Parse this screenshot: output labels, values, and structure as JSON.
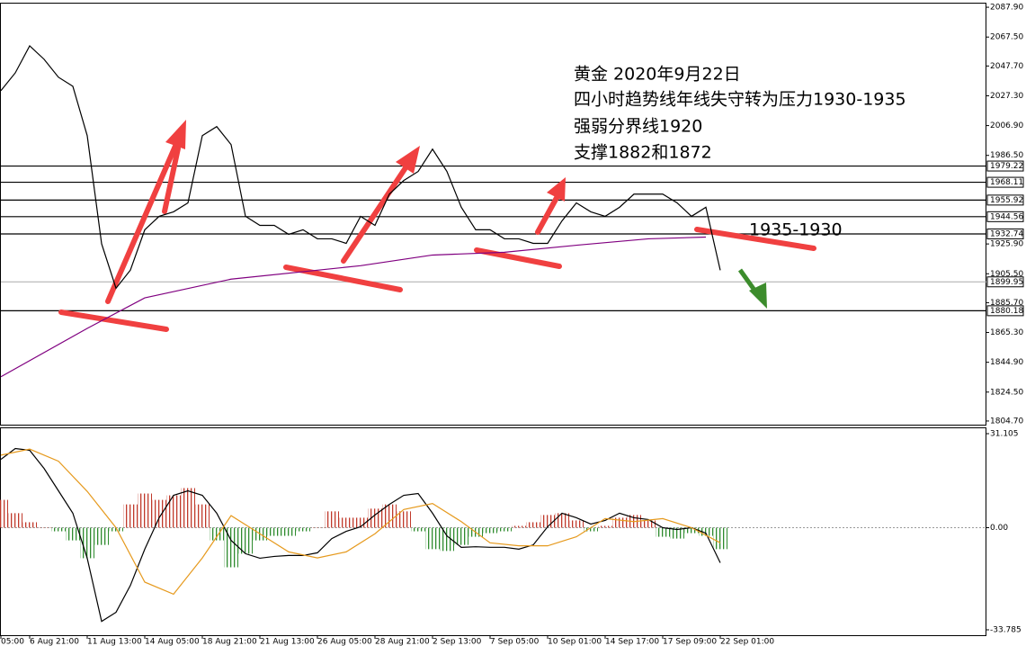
{
  "chart_data": [
    {
      "type": "line",
      "annotations": [
        "黄金 2020年9月22日",
        "四小时趋势线年线失守转为压力1930-1935",
        "强弱分界线1920",
        "支撑1882和1872",
        "1935-1930"
      ],
      "xlim": [
        0,
        274
      ],
      "ylim": [
        1802.2,
        2090.4
      ],
      "yticks": [
        {
          "value": 2087.9,
          "label": "2087.90"
        },
        {
          "value": 2067.5,
          "label": "2067.50"
        },
        {
          "value": 2047.7,
          "label": "2047.70"
        },
        {
          "value": 2027.3,
          "label": "2027.30"
        },
        {
          "value": 2006.9,
          "label": "2006.90"
        },
        {
          "value": 1986.5,
          "label": "1986.50"
        },
        {
          "value": 1925.9,
          "label": "1925.90"
        },
        {
          "value": 1905.5,
          "label": "1905.50"
        },
        {
          "value": 1885.7,
          "label": "1885.70"
        },
        {
          "value": 1865.3,
          "label": "1865.30"
        },
        {
          "value": 1844.9,
          "label": "1844.90"
        },
        {
          "value": 1824.5,
          "label": "1824.50"
        },
        {
          "value": 1804.7,
          "label": "1804.70"
        }
      ],
      "levels": [
        {
          "value": 1979.22,
          "label": "1979.22"
        },
        {
          "value": 1968.11,
          "label": "1968.11"
        },
        {
          "value": 1955.92,
          "label": "1955.92"
        },
        {
          "value": 1944.56,
          "label": "1944.56"
        },
        {
          "value": 1932.74,
          "label": "1932.74"
        },
        {
          "value": 1880.18,
          "label": "1880.18"
        }
      ],
      "current": {
        "value": 1899.95,
        "label": "1899.95"
      },
      "series": [
        {
          "color": "#000000",
          "x": [
            0,
            4,
            8,
            12,
            16,
            20,
            24,
            28,
            32,
            36,
            40,
            44,
            48,
            52,
            56,
            60,
            64,
            68,
            72,
            76,
            80,
            84,
            88,
            92,
            96,
            100,
            104,
            108,
            112,
            116,
            120,
            124,
            128,
            132,
            136,
            140,
            144,
            148,
            152,
            156,
            160,
            164,
            168,
            172,
            176,
            180,
            184,
            188,
            192,
            196,
            200
          ],
          "values": [
            2030.8,
            2043,
            2061.5,
            2052.3,
            2040,
            2033.8,
            2000,
            1926,
            1895.6,
            1908,
            1935.6,
            1944.8,
            1947.9,
            1954,
            2000,
            2006.2,
            1993.9,
            1944.8,
            1938.6,
            1938.6,
            1932.5,
            1935.6,
            1929.4,
            1929.4,
            1926.3,
            1944.8,
            1938.6,
            1960,
            1969.3,
            1975.5,
            1990.8,
            1975.5,
            1951,
            1935.6,
            1935.6,
            1929.4,
            1929.4,
            1926.3,
            1926.3,
            1941.7,
            1954,
            1947.9,
            1944.8,
            1951,
            1960,
            1960,
            1960,
            1954,
            1944.8,
            1951,
            1907.9
          ]
        },
        {
          "color": "#800080",
          "x": [
            0,
            24,
            40,
            64,
            100,
            120,
            140,
            160,
            180,
            196
          ],
          "values": [
            1835,
            1868.1,
            1889,
            1901.8,
            1911,
            1918.3,
            1920.2,
            1925,
            1929.4,
            1930.6
          ]
        }
      ]
    },
    {
      "type": "bar",
      "xlim": [
        0,
        274
      ],
      "ylim": [
        -35.57,
        32.89
      ],
      "yticks": [
        {
          "value": 31.105,
          "label": "31.105"
        },
        {
          "value": 0,
          "label": "0.00"
        },
        {
          "value": -33.785,
          "label": "-33.785"
        }
      ],
      "xticks": [
        {
          "value": 0,
          "label": "05:00"
        },
        {
          "value": 8,
          "label": "6 Aug 21:00"
        },
        {
          "value": 24,
          "label": "11 Aug 13:00"
        },
        {
          "value": 40,
          "label": "14 Aug 05:00"
        },
        {
          "value": 56,
          "label": "18 Aug 21:00"
        },
        {
          "value": 72,
          "label": "21 Aug 13:00"
        },
        {
          "value": 88,
          "label": "26 Aug 05:00"
        },
        {
          "value": 104,
          "label": "28 Aug 21:00"
        },
        {
          "value": 120,
          "label": "2 Sep 13:00"
        },
        {
          "value": 136,
          "label": "7 Sep 05:00"
        },
        {
          "value": 152,
          "label": "10 Sep 01:00"
        },
        {
          "value": 168,
          "label": "14 Sep 17:00"
        },
        {
          "value": 184,
          "label": "17 Sep 09:00"
        },
        {
          "value": 200,
          "label": "22 Sep 01:00"
        }
      ],
      "x": [
        0,
        4,
        8,
        12,
        16,
        20,
        24,
        28,
        32,
        36,
        40,
        44,
        48,
        52,
        56,
        60,
        64,
        68,
        72,
        76,
        80,
        84,
        88,
        92,
        96,
        100,
        104,
        108,
        112,
        116,
        120,
        124,
        128,
        132,
        136,
        140,
        144,
        148,
        152,
        156,
        160,
        164,
        168,
        172,
        176,
        180,
        184,
        188,
        192,
        196,
        200
      ],
      "values": [
        9.2,
        4.8,
        1.8,
        0,
        -1.2,
        -4.2,
        -10.1,
        -5.7,
        -1.2,
        7.7,
        11.3,
        9.2,
        10.7,
        13.1,
        7.7,
        -4.2,
        -13.1,
        -8.6,
        -4.2,
        -2.7,
        -2.7,
        -1.2,
        0,
        5.4,
        3.3,
        3.3,
        6.3,
        7.7,
        5.4,
        -1.2,
        -7.1,
        -7.7,
        -5.7,
        -3,
        -1.8,
        -1.2,
        0.6,
        1.8,
        4.2,
        4.8,
        2.4,
        -1.2,
        0.6,
        3.3,
        4.2,
        2.4,
        -3,
        -3.6,
        -1.8,
        -2.7,
        -7.1
      ],
      "colors": {
        "positive": "#c0392b",
        "negative": "#2e8b2e"
      },
      "series": [
        {
          "color": "#000000",
          "x": [
            0,
            4,
            8,
            12,
            16,
            20,
            24,
            28,
            32,
            36,
            40,
            44,
            48,
            52,
            56,
            60,
            64,
            68,
            72,
            76,
            80,
            84,
            88,
            92,
            96,
            100,
            104,
            108,
            112,
            116,
            120,
            124,
            128,
            132,
            136,
            140,
            144,
            148,
            152,
            156,
            160,
            164,
            168,
            172,
            176,
            180,
            184,
            188,
            192,
            196,
            200
          ],
          "values": [
            22.6,
            26.2,
            25.6,
            19.6,
            12.2,
            4.8,
            -10.1,
            -31,
            -28,
            -19.1,
            -7.1,
            3.3,
            10.7,
            12.2,
            10.7,
            4.8,
            -4.2,
            -8.6,
            -10.1,
            -9.5,
            -9.2,
            -9.2,
            -8.3,
            -3.6,
            -1.2,
            0.3,
            4.2,
            7.7,
            10.7,
            11.3,
            4.8,
            -2.7,
            -6.5,
            -6.3,
            -6.5,
            -6.5,
            -7.1,
            -5.7,
            0.3,
            4.8,
            3.3,
            1.2,
            2.4,
            4.8,
            3.3,
            2.7,
            0,
            -0.6,
            0,
            -1.8,
            -11.6
          ]
        },
        {
          "color": "#e69a1e",
          "x": [
            0,
            8,
            16,
            24,
            32,
            40,
            48,
            56,
            64,
            72,
            80,
            88,
            96,
            104,
            112,
            120,
            128,
            136,
            144,
            152,
            160,
            168,
            176,
            184,
            192,
            200
          ],
          "values": [
            24,
            26,
            22,
            12,
            0,
            -18,
            -22,
            -10,
            4,
            -2,
            -8,
            -10,
            -8,
            -2,
            6,
            8,
            2,
            -5,
            -6,
            -6,
            -3,
            3,
            2,
            3,
            0,
            -5
          ]
        }
      ]
    }
  ]
}
